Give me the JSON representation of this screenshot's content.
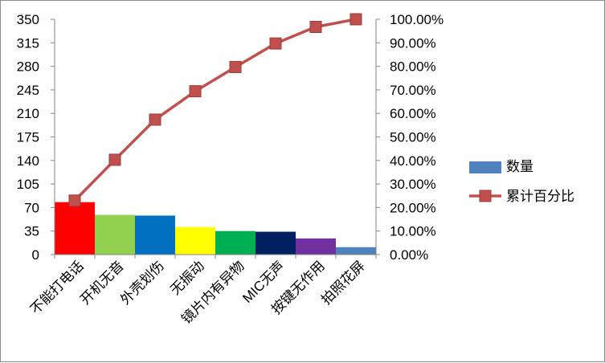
{
  "chart_data": {
    "type": "bar+line",
    "categories": [
      "不能打电话",
      "开机无音",
      "外壳划伤",
      "无振动",
      "镜片内有异物",
      "MIC无声",
      "按键无作用",
      "拍照花屏"
    ],
    "series": [
      {
        "name": "数量",
        "type": "bar",
        "axis": "left",
        "values": [
          78,
          59,
          58,
          41,
          35,
          34,
          24,
          11
        ],
        "colors": [
          "#ff0000",
          "#92d050",
          "#0070c0",
          "#ffff00",
          "#00b050",
          "#002060",
          "#7030a0",
          "#4f81bd"
        ]
      },
      {
        "name": "累计百分比",
        "type": "line",
        "axis": "right",
        "values": [
          0.2294,
          0.4029,
          0.5735,
          0.6941,
          0.7971,
          0.8971,
          0.9676,
          1.0
        ],
        "color": "#c0504d"
      }
    ],
    "y_left": {
      "min": 0,
      "max": 350,
      "ticks": [
        "0",
        "35",
        "70",
        "105",
        "140",
        "175",
        "210",
        "245",
        "280",
        "315",
        "350"
      ]
    },
    "y_right": {
      "min": 0,
      "max": 1,
      "ticks": [
        "0.00%",
        "10.00%",
        "20.00%",
        "30.00%",
        "40.00%",
        "50.00%",
        "60.00%",
        "70.00%",
        "80.00%",
        "90.00%",
        "100.00%"
      ]
    },
    "grid": false,
    "legend": "right"
  }
}
